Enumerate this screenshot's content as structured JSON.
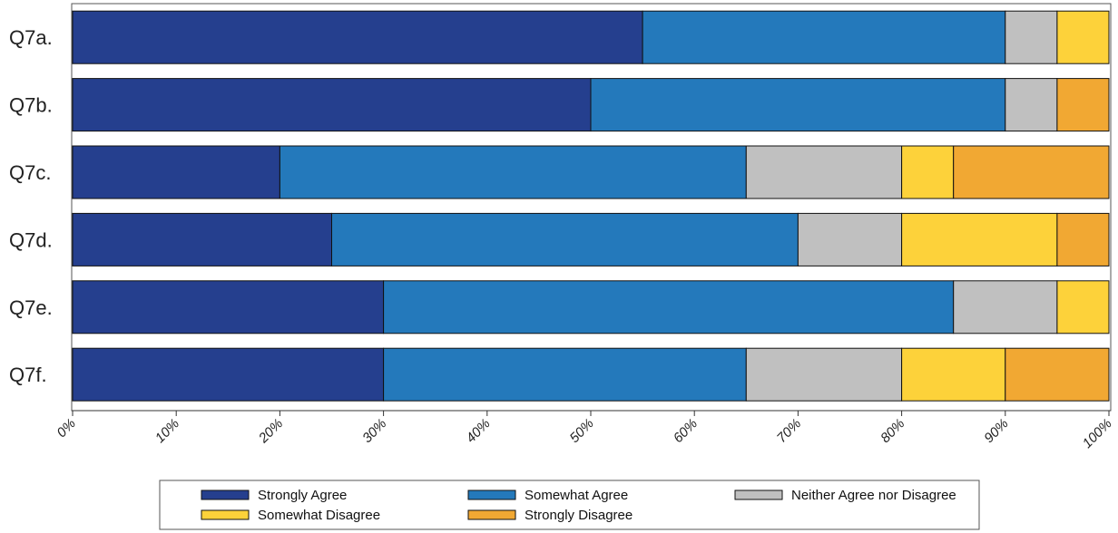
{
  "chart_data": {
    "type": "bar",
    "orientation": "horizontal",
    "stacked": true,
    "categories": [
      "Q7a.",
      "Q7b.",
      "Q7c.",
      "Q7d.",
      "Q7e.",
      "Q7f."
    ],
    "series": [
      {
        "name": "Strongly Agree",
        "color": "#253f8e",
        "values": [
          55,
          50,
          20,
          25,
          30,
          30
        ]
      },
      {
        "name": "Somewhat Agree",
        "color": "#2479bb",
        "values": [
          35,
          40,
          45,
          45,
          55,
          35
        ]
      },
      {
        "name": "Neither Agree nor Disagree",
        "color": "#c0c0c0",
        "values": [
          5,
          5,
          15,
          10,
          10,
          15
        ]
      },
      {
        "name": "Somewhat Disagree",
        "color": "#fdd23a",
        "values": [
          5,
          0,
          5,
          15,
          5,
          10
        ]
      },
      {
        "name": "Strongly Disagree",
        "color": "#f1a833",
        "values": [
          0,
          5,
          15,
          5,
          0,
          10
        ]
      }
    ],
    "x_ticks": [
      "0%",
      "10%",
      "20%",
      "30%",
      "40%",
      "50%",
      "60%",
      "70%",
      "80%",
      "90%",
      "100%"
    ],
    "xlim": [
      0,
      100
    ],
    "grid": false,
    "legend_position": "bottom"
  }
}
